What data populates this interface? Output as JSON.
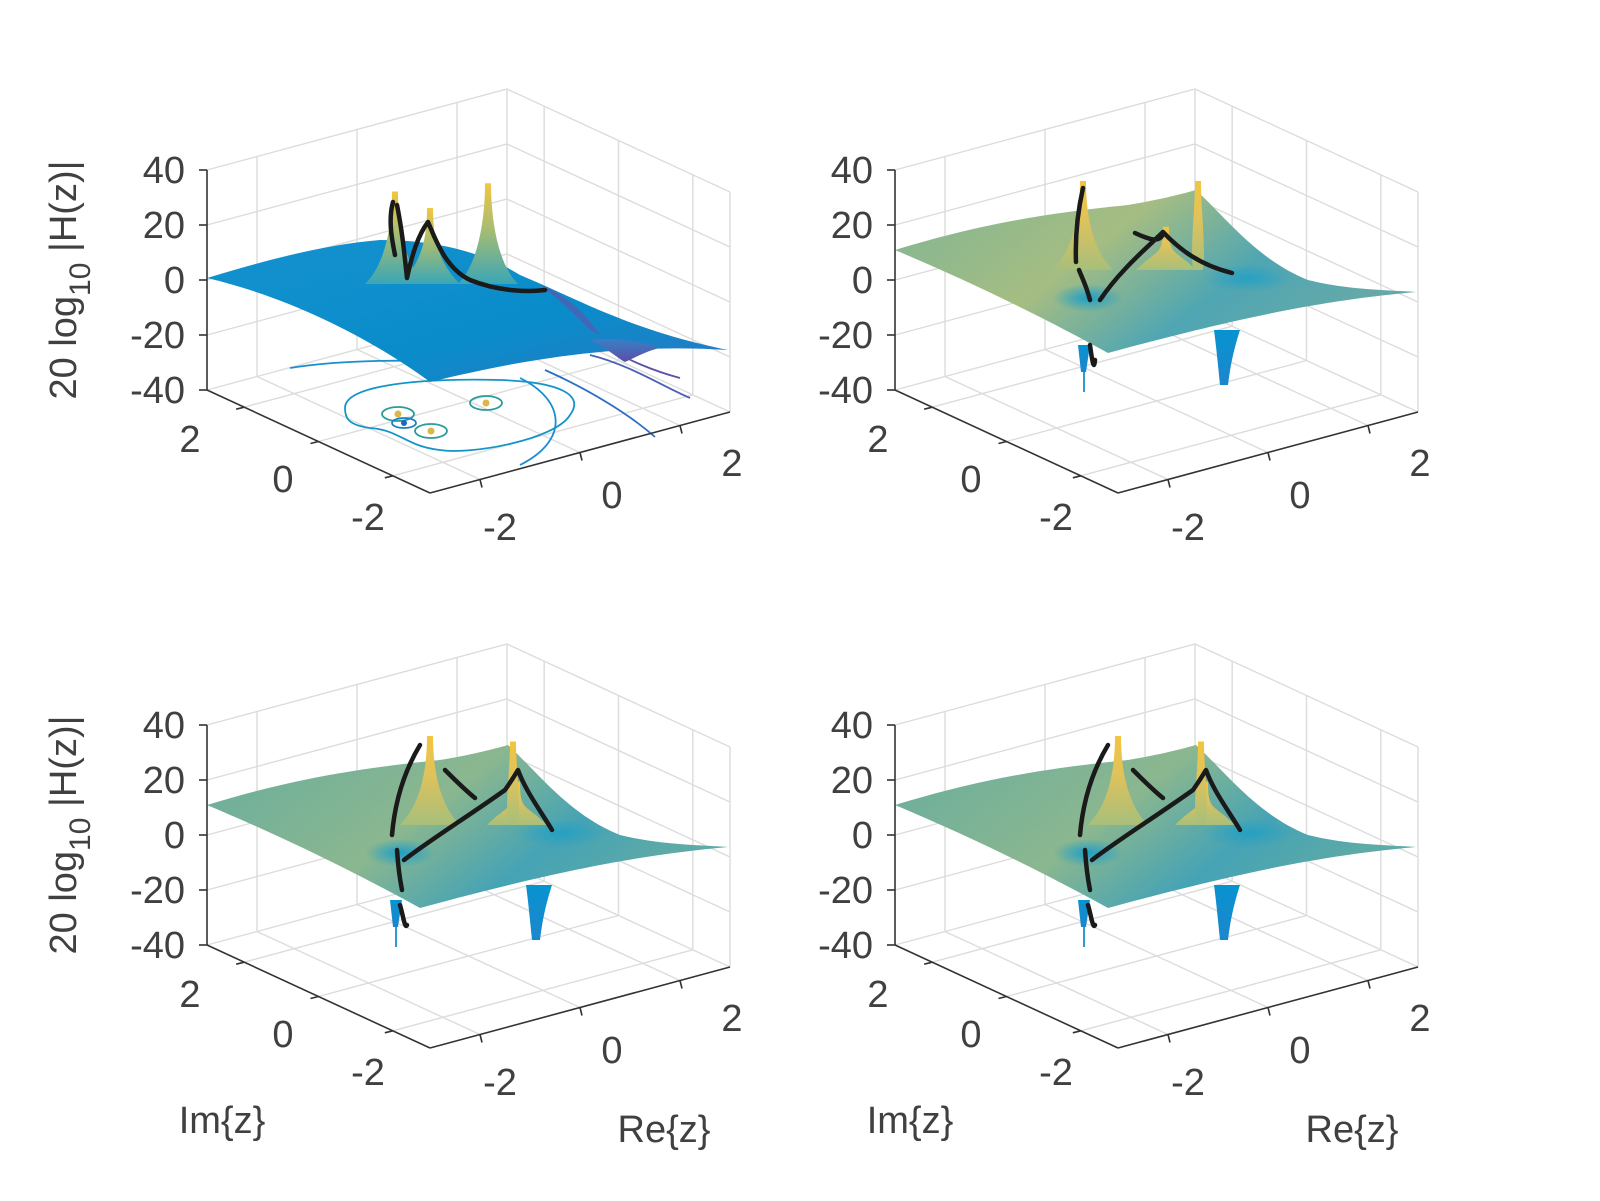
{
  "figure": {
    "layout": "2x2 grid of 3-D surface plots",
    "colormap": "parula",
    "colors": {
      "low": "#3e3aa4",
      "mid_blue": "#0a8fd0",
      "teal": "#3aa6b5",
      "sage": "#8fb98c",
      "yellow": "#f0c545",
      "locus": "#1a1a1a",
      "grid": "#dcdcdc",
      "text": "#404040"
    }
  },
  "chart_data": [
    {
      "type": "surface",
      "panel": "top-left",
      "zlabel": "20 log10 |H(z)|",
      "zlabel_main": "20 log",
      "zlabel_sub": "10",
      "zlabel_tail": " |H(z)|",
      "xlabel": "",
      "ylabel": "",
      "zticks": [
        "40",
        "20",
        "0",
        "-20",
        "-40"
      ],
      "zlim": [
        -40,
        40
      ],
      "im_ticks": [
        "2",
        "0",
        "-2"
      ],
      "re_ticks": [
        "-2",
        "0",
        "2"
      ],
      "im_lim": [
        -3,
        3
      ],
      "re_lim": [
        -3,
        3
      ],
      "surface_tone": "blue",
      "peaks_db": [
        34,
        28,
        37
      ],
      "dips_db": [
        -15
      ],
      "has_contour_projection": true,
      "contour_markers": 4,
      "has_locus_curve": true
    },
    {
      "type": "surface",
      "panel": "top-right",
      "zlabel": "",
      "xlabel": "",
      "ylabel": "",
      "zticks": [
        "40",
        "20",
        "0",
        "-20",
        "-40"
      ],
      "zlim": [
        -40,
        40
      ],
      "im_ticks": [
        "2",
        "0",
        "-2"
      ],
      "re_ticks": [
        "-2",
        "0",
        "2"
      ],
      "im_lim": [
        -3,
        3
      ],
      "re_lim": [
        -3,
        3
      ],
      "surface_tone": "sage",
      "peaks_db": [
        40,
        27,
        40
      ],
      "dips_db": [
        -40,
        -38
      ],
      "has_contour_projection": false,
      "has_locus_curve": true
    },
    {
      "type": "surface",
      "panel": "bottom-left",
      "zlabel": "20 log10 |H(z)|",
      "zlabel_main": "20 log",
      "zlabel_sub": "10",
      "zlabel_tail": " |H(z)|",
      "xlabel": "Re{z}",
      "ylabel": "Im{z}",
      "zticks": [
        "40",
        "20",
        "0",
        "-20",
        "-40"
      ],
      "zlim": [
        -40,
        40
      ],
      "im_ticks": [
        "2",
        "0",
        "-2"
      ],
      "re_ticks": [
        "-2",
        "0",
        "2"
      ],
      "im_lim": [
        -3,
        3
      ],
      "re_lim": [
        -3,
        3
      ],
      "surface_tone": "teal",
      "peaks_db": [
        40,
        26,
        38
      ],
      "dips_db": [
        -40,
        -38
      ],
      "has_contour_projection": false,
      "has_locus_curve": true
    },
    {
      "type": "surface",
      "panel": "bottom-right",
      "zlabel": "",
      "xlabel": "Re{z}",
      "ylabel": "Im{z}",
      "zticks": [
        "40",
        "20",
        "0",
        "-20",
        "-40"
      ],
      "zlim": [
        -40,
        40
      ],
      "im_ticks": [
        "2",
        "0",
        "-2"
      ],
      "re_ticks": [
        "-2",
        "0",
        "2"
      ],
      "im_lim": [
        -3,
        3
      ],
      "re_lim": [
        -3,
        3
      ],
      "surface_tone": "teal",
      "peaks_db": [
        40,
        27,
        38
      ],
      "dips_db": [
        -40,
        -38
      ],
      "has_contour_projection": false,
      "has_locus_curve": true
    }
  ]
}
